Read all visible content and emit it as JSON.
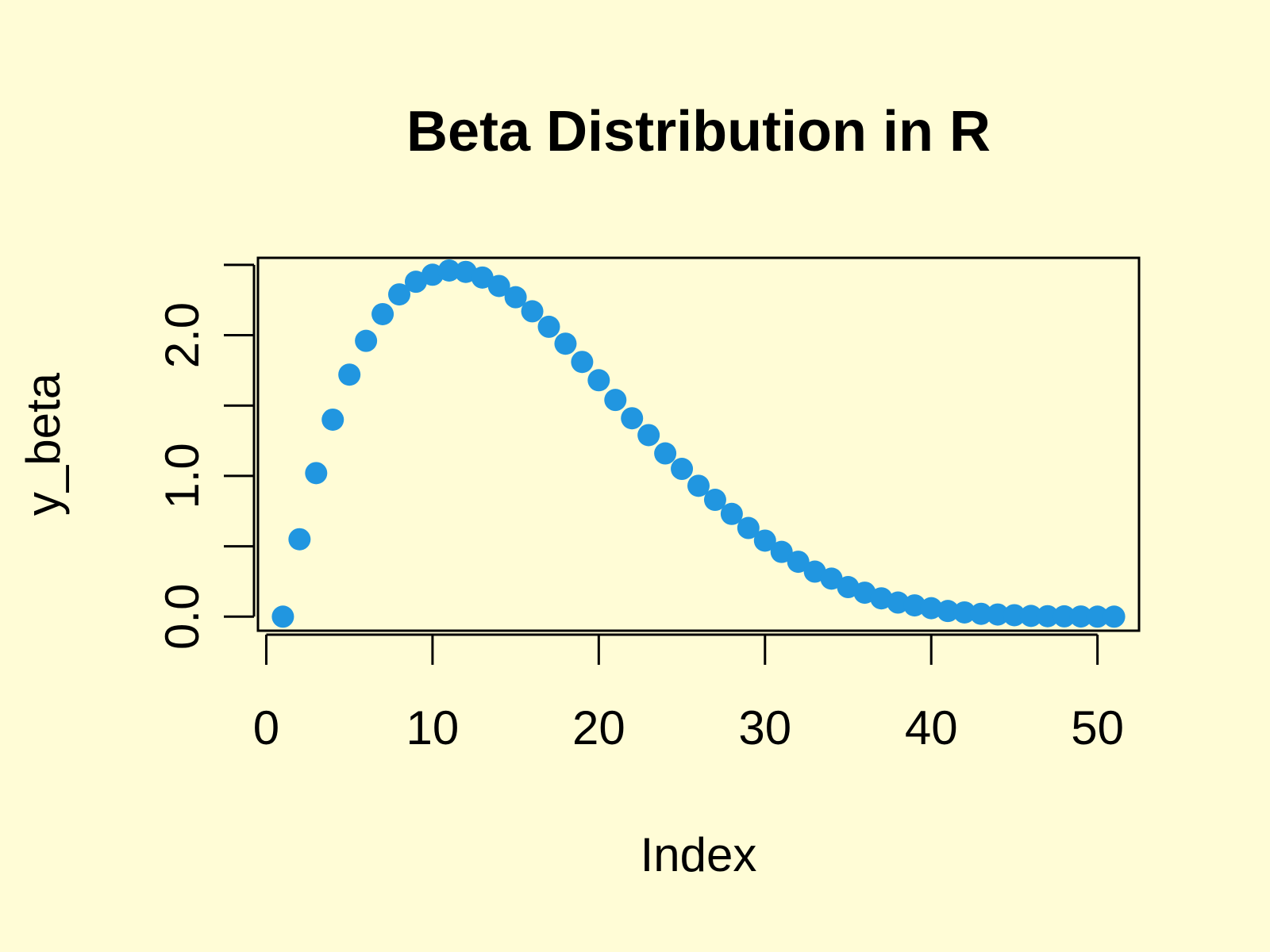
{
  "chart_data": {
    "type": "scatter",
    "title": "Beta Distribution in R",
    "xlabel": "Index",
    "ylabel": "y_beta",
    "xlim": [
      -0.5,
      52.5
    ],
    "ylim": [
      -0.1,
      2.55
    ],
    "x_ticks": [
      0,
      10,
      20,
      30,
      40,
      50
    ],
    "x_tick_labels": [
      "0",
      "10",
      "20",
      "30",
      "40",
      "50"
    ],
    "y_ticks": [
      0.0,
      0.5,
      1.0,
      1.5,
      2.0,
      2.5
    ],
    "y_tick_labels": [
      "0.0",
      "",
      "1.0",
      "",
      "2.0",
      ""
    ],
    "grid": false,
    "marker_color": "#2196e0",
    "background_color": "#fffcd6",
    "series": [
      {
        "name": "y_beta",
        "x": [
          1,
          2,
          3,
          4,
          5,
          6,
          7,
          8,
          9,
          10,
          11,
          12,
          13,
          14,
          15,
          16,
          17,
          18,
          19,
          20,
          21,
          22,
          23,
          24,
          25,
          26,
          27,
          28,
          29,
          30,
          31,
          32,
          33,
          34,
          35,
          36,
          37,
          38,
          39,
          40,
          41,
          42,
          43,
          44,
          45,
          46,
          47,
          48,
          49,
          50,
          51
        ],
        "values": [
          0.0,
          0.55,
          1.02,
          1.4,
          1.72,
          1.96,
          2.15,
          2.29,
          2.38,
          2.43,
          2.46,
          2.45,
          2.41,
          2.35,
          2.27,
          2.17,
          2.06,
          1.94,
          1.81,
          1.68,
          1.54,
          1.41,
          1.29,
          1.16,
          1.05,
          0.93,
          0.83,
          0.73,
          0.63,
          0.54,
          0.46,
          0.39,
          0.32,
          0.27,
          0.21,
          0.17,
          0.13,
          0.1,
          0.08,
          0.06,
          0.04,
          0.03,
          0.02,
          0.015,
          0.01,
          0.005,
          0.003,
          0.002,
          0.001,
          0.0,
          0.0
        ]
      }
    ]
  }
}
